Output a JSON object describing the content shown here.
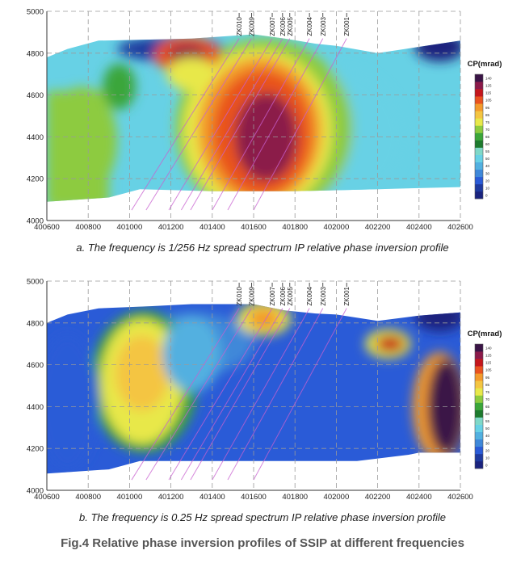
{
  "chart_data": [
    {
      "type": "heatmap",
      "caption": "a. The frequency is 1/256 Hz spread spectrum IP relative phase inversion profile",
      "x_ticks": [
        "400600",
        "400800",
        "401000",
        "401200",
        "401400",
        "401600",
        "401800",
        "402000",
        "402200",
        "402400",
        "402600"
      ],
      "y_ticks": [
        "4000",
        "4200",
        "4400",
        "4600",
        "4800",
        "5000"
      ],
      "xlim": [
        400600,
        402600
      ],
      "ylim": [
        4000,
        5000
      ],
      "boreholes": [
        "ZK010",
        "ZK009",
        "ZK007",
        "ZK006",
        "ZK005",
        "ZK004",
        "ZK003",
        "ZK001"
      ],
      "borehole_x": [
        401530,
        401590,
        401690,
        401740,
        401775,
        401870,
        401935,
        402050
      ],
      "colorbar_title": "CP(mrad)",
      "colorbar_ticks": [
        "0",
        "10",
        "20",
        "30",
        "40",
        "50",
        "55",
        "60",
        "65",
        "70",
        "75",
        "85",
        "95",
        "105",
        "115",
        "125",
        "140"
      ],
      "anomalies": [
        {
          "x": 401660,
          "y": 4430,
          "level": "high"
        },
        {
          "x": 401280,
          "y": 4790,
          "level": "high"
        },
        {
          "x": 400960,
          "y": 4640,
          "level": "medium"
        }
      ]
    },
    {
      "type": "heatmap",
      "caption": "b. The frequency is 0.25 Hz spread spectrum IP relative phase inversion profile",
      "x_ticks": [
        "400600",
        "400800",
        "401000",
        "401200",
        "401400",
        "401600",
        "401800",
        "402000",
        "402200",
        "402400",
        "402600"
      ],
      "y_ticks": [
        "4000",
        "4200",
        "4400",
        "4600",
        "4800",
        "5000"
      ],
      "xlim": [
        400600,
        402600
      ],
      "ylim": [
        4000,
        5000
      ],
      "boreholes": [
        "ZK010",
        "ZK009",
        "ZK007",
        "ZK006",
        "ZK005",
        "ZK004",
        "ZK003",
        "ZK001"
      ],
      "borehole_x": [
        401530,
        401590,
        401690,
        401740,
        401775,
        401870,
        401935,
        402050
      ],
      "colorbar_title": "CP(mrad)",
      "colorbar_ticks": [
        "0",
        "10",
        "20",
        "30",
        "40",
        "50",
        "55",
        "60",
        "65",
        "70",
        "75",
        "85",
        "95",
        "105",
        "115",
        "125",
        "140"
      ],
      "anomalies": [
        {
          "x": 401060,
          "y": 4530,
          "level": "medium-high"
        },
        {
          "x": 402260,
          "y": 4700,
          "level": "high"
        },
        {
          "x": 402520,
          "y": 4420,
          "level": "high"
        },
        {
          "x": 401630,
          "y": 4820,
          "level": "medium-high"
        }
      ]
    }
  ],
  "figure": {
    "title": "Fig.4 Relative phase inversion profiles of SSIP at different frequencies"
  },
  "colors": {
    "scale": [
      "#ffffff",
      "#1a237e",
      "#1e3a9e",
      "#2a5bd7",
      "#3f88d9",
      "#52b0e0",
      "#67d1e5",
      "#7fd8c8",
      "#1d7a2e",
      "#3ba63a",
      "#8dcb3f",
      "#e8e84a",
      "#f4c542",
      "#f39a2c",
      "#e9521f",
      "#c4161c",
      "#8b1a4a",
      "#3a1446"
    ],
    "borehole_line": "#c860d0"
  }
}
